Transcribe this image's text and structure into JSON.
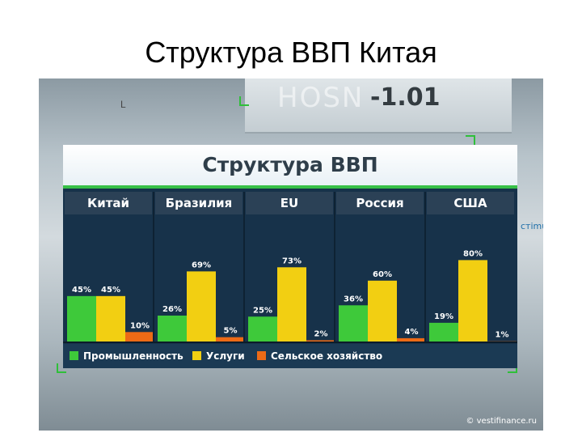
{
  "slide": {
    "title": "Структура ВВП Китая"
  },
  "background": {
    "ticker_text": "HOSN",
    "ticker_number": "-1.01",
    "side_text": "стimulu",
    "mark_text": "L"
  },
  "watermark": "© vestifinance.ru",
  "colors": {
    "industry": "#3ec93a",
    "services": "#f2cf12",
    "agriculture": "#ec6a16",
    "panel": "#17324a",
    "header_band": "#2b4156"
  },
  "chart_data": {
    "type": "bar",
    "title": "Структура ВВП",
    "categories": [
      "Китай",
      "Бразилия",
      "EU",
      "Россия",
      "США"
    ],
    "series": [
      {
        "name": "Промышленность",
        "values": [
          45,
          26,
          25,
          36,
          19
        ]
      },
      {
        "name": "Услуги",
        "values": [
          45,
          69,
          73,
          60,
          80
        ]
      },
      {
        "name": "Сельское хозяйство",
        "values": [
          10,
          5,
          2,
          4,
          1
        ]
      }
    ],
    "value_labels": [
      [
        "45%",
        "26%",
        "25%",
        "36%",
        "19%"
      ],
      [
        "45%",
        "69%",
        "73%",
        "60%",
        "80%"
      ],
      [
        "10%",
        "5%",
        "2%",
        "4%",
        "1%"
      ]
    ],
    "ylim": [
      0,
      100
    ],
    "legend": "bottom-left"
  }
}
